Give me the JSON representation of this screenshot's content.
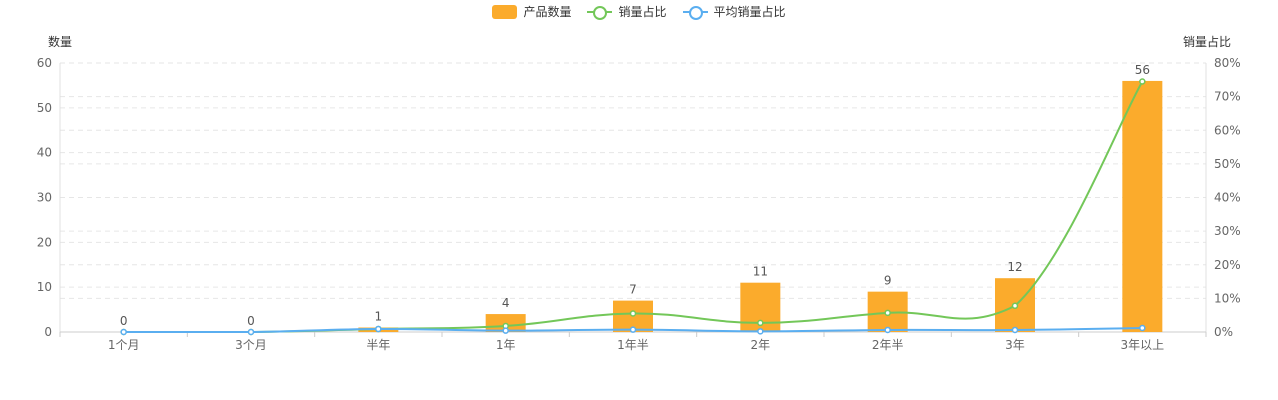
{
  "legend": {
    "bar_label": "产品数量",
    "line1_label": "销量占比",
    "line2_label": "平均销量占比"
  },
  "colors": {
    "bar": "#fbab2c",
    "line1": "#73c759",
    "line2": "#5aaef0"
  },
  "chart_data": {
    "type": "bar",
    "title": "",
    "categories": [
      "1个月",
      "3个月",
      "半年",
      "1年",
      "1年半",
      "2年",
      "2年半",
      "3年",
      "3年以上"
    ],
    "ylabel": "数量",
    "ylim": [
      0,
      60
    ],
    "yticks": [
      0,
      10,
      20,
      30,
      40,
      50,
      60
    ],
    "ylabel_right": "销量占比",
    "ylim_right": [
      0,
      80
    ],
    "yticks_right": [
      "0%",
      "10%",
      "20%",
      "30%",
      "40%",
      "50%",
      "60%",
      "70%",
      "80%"
    ],
    "grid": true,
    "legend_position": "top-center",
    "series": [
      {
        "name": "产品数量",
        "type": "bar",
        "axis": "left",
        "values": [
          0,
          0,
          1,
          4,
          7,
          11,
          9,
          12,
          56
        ],
        "data_labels": [
          "0",
          "0",
          "1",
          "4",
          "7",
          "11",
          "9",
          "12",
          "56"
        ]
      },
      {
        "name": "销量占比",
        "type": "line",
        "smooth": true,
        "axis": "right",
        "values": [
          0,
          0,
          0.9,
          1.8,
          5.5,
          2.7,
          5.7,
          7.8,
          74.5
        ]
      },
      {
        "name": "平均销量占比",
        "type": "line",
        "smooth": true,
        "axis": "right",
        "values": [
          0,
          0,
          0.9,
          0.4,
          0.7,
          0.2,
          0.6,
          0.6,
          1.2
        ]
      }
    ]
  }
}
